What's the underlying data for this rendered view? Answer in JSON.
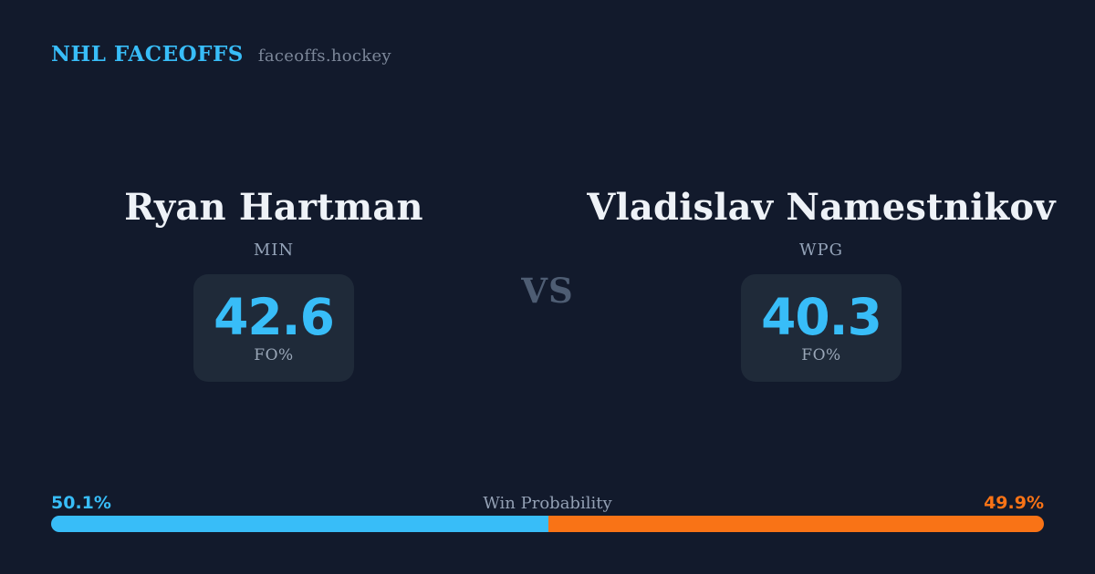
{
  "header": {
    "brand": "NHL FACEOFFS",
    "site": "faceoffs.hockey"
  },
  "matchup": {
    "vs_label": "VS",
    "left": {
      "name": "Ryan Hartman",
      "team": "MIN",
      "stat_value": "42.6",
      "stat_label": "FO%"
    },
    "right": {
      "name": "Vladislav Namestnikov",
      "team": "WPG",
      "stat_value": "40.3",
      "stat_label": "FO%"
    }
  },
  "win_probability": {
    "label": "Win Probability",
    "left_pct_text": "50.1%",
    "right_pct_text": "49.9%",
    "left_value": 50.1,
    "right_value": 49.9
  },
  "colors": {
    "background": "#121a2c",
    "card_background": "#1f2a39",
    "accent_blue": "#38bdf8",
    "accent_orange": "#f97316",
    "name_text": "#eef2f7",
    "muted_text": "#94a3b8"
  }
}
